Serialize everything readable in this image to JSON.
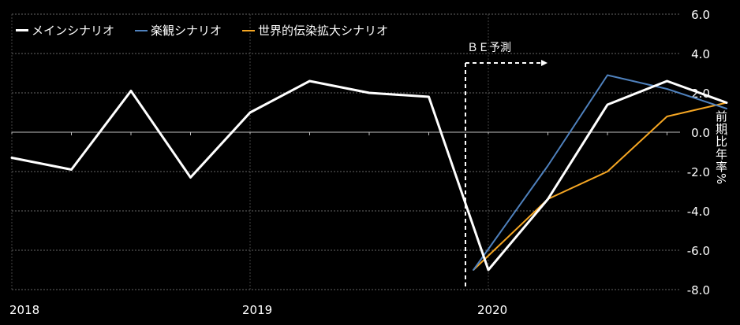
{
  "chart_data": {
    "type": "line",
    "title": "",
    "xlabel": "",
    "ylabel": "前期比年率%",
    "ylim": [
      -8.0,
      6.0
    ],
    "yticks": [
      "6.0",
      "4.0",
      "2.0",
      "0.0",
      "-2.0",
      "-4.0",
      "-6.0",
      "-8.0"
    ],
    "xtick_labels": [
      "2018",
      "2019",
      "2020"
    ],
    "annotation": "ＢＥ予測",
    "legend_position": "top-left",
    "grid": true,
    "series": [
      {
        "name": "メインシナリオ",
        "color": "#ffffff",
        "points": [
          [
            0,
            -1.3
          ],
          [
            1,
            -1.9
          ],
          [
            2,
            2.1
          ],
          [
            3,
            -2.3
          ],
          [
            4,
            1.0
          ],
          [
            5,
            2.6
          ],
          [
            6,
            2.0
          ],
          [
            7,
            1.8
          ],
          [
            8,
            -7.0
          ],
          [
            9,
            -3.4
          ],
          [
            10,
            1.4
          ],
          [
            11,
            2.6
          ],
          [
            12,
            1.5
          ]
        ]
      },
      {
        "name": "楽観シナリオ",
        "color": "#4f81bd",
        "points": [
          [
            7.75,
            -7.0
          ],
          [
            9,
            -1.7
          ],
          [
            10,
            2.9
          ],
          [
            11,
            2.2
          ],
          [
            12,
            1.2
          ]
        ]
      },
      {
        "name": "世界的伝染拡大シナリオ",
        "color": "#f5a623",
        "points": [
          [
            7.75,
            -7.0
          ],
          [
            9,
            -3.4
          ],
          [
            10,
            -2.0
          ],
          [
            11,
            0.8
          ],
          [
            12,
            1.5
          ]
        ]
      }
    ]
  }
}
